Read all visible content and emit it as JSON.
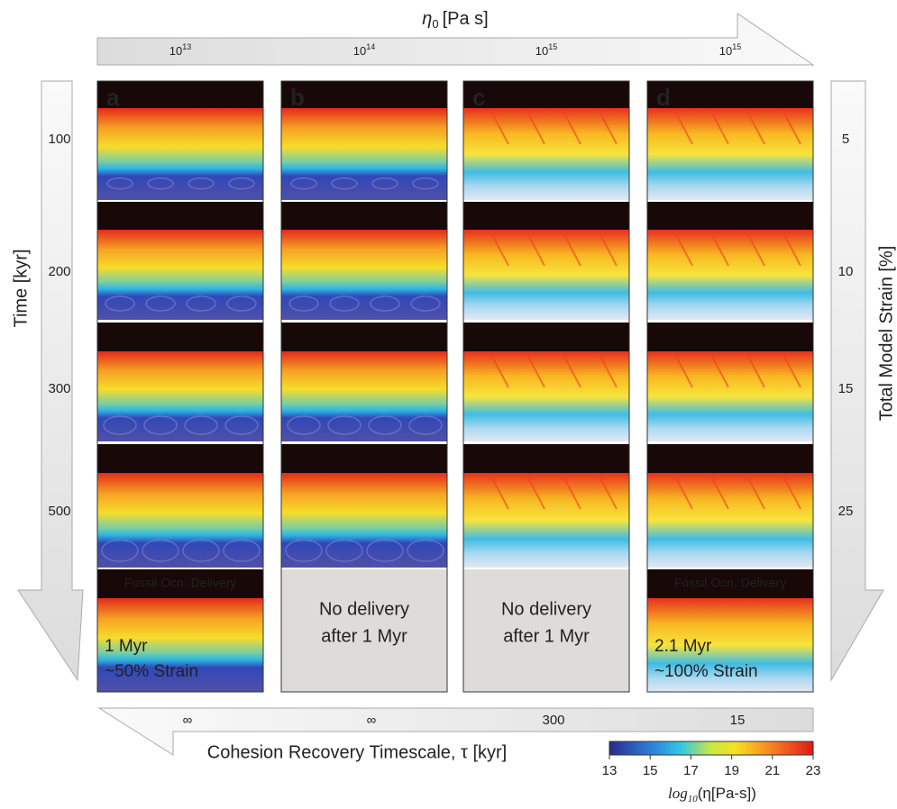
{
  "top_axis": {
    "symbol": "η",
    "subscript": "0",
    "unit": "[Pa s]",
    "columns": [
      {
        "base": "10",
        "exponent": "13"
      },
      {
        "base": "10",
        "exponent": "14"
      },
      {
        "base": "10",
        "exponent": "15"
      },
      {
        "base": "10",
        "exponent": "15"
      }
    ]
  },
  "left_axis": {
    "label": "Time [kyr]",
    "ticks": [
      100,
      200,
      300,
      500
    ]
  },
  "right_axis": {
    "label": "Total Model Strain [%]",
    "ticks": [
      5,
      10,
      15,
      25
    ]
  },
  "panels": [
    {
      "letter": "a",
      "final": {
        "header": "Fossil Ocn. Delivery",
        "lines": [
          "1 Myr",
          "~50% Strain"
        ]
      }
    },
    {
      "letter": "b",
      "final": {
        "lines": [
          "No delivery",
          "after 1 Myr"
        ]
      }
    },
    {
      "letter": "c",
      "final": {
        "lines": [
          "No delivery",
          "after 1 Myr"
        ]
      }
    },
    {
      "letter": "d",
      "final": {
        "header": "Fossil Ocn. Delivery",
        "lines": [
          "2.1 Myr",
          "~100% Strain"
        ]
      }
    }
  ],
  "bottom_axis": {
    "label": "Cohesion Recovery Timescale, τ [kyr]",
    "values": [
      "∞",
      "∞",
      "300",
      "15"
    ]
  },
  "colorbar": {
    "ticks": [
      13,
      15,
      17,
      19,
      21,
      23
    ],
    "label": {
      "prefix": "log",
      "subscript": "10",
      "rest": "(η[Pa-s])"
    }
  }
}
